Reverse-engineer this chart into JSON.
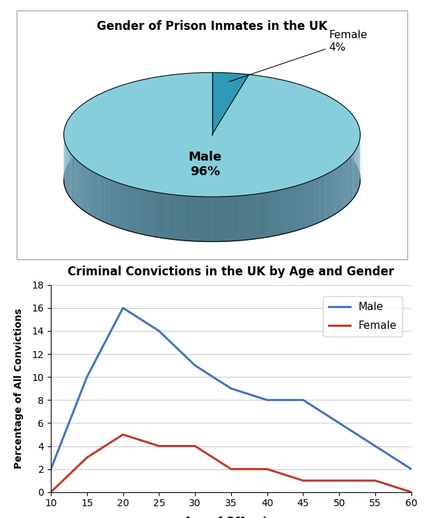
{
  "pie_title": "Gender of Prison Inmates in the UK",
  "pie_labels": [
    "Male",
    "Female"
  ],
  "pie_values": [
    96,
    4
  ],
  "male_face_color": "#87cedc",
  "female_face_color": "#2e9ab5",
  "male_side_color": "#5a9aaa",
  "side_dark_color": "#3a6a7a",
  "male_color": "#4472c4",
  "female_color": "#c0392b",
  "line_title": "Criminal Convictions in the UK by Age and Gender",
  "x_label": "Age of Offender",
  "y_label": "Percentage of All Convictions",
  "ages": [
    10,
    15,
    20,
    25,
    30,
    35,
    40,
    45,
    50,
    55,
    60
  ],
  "male_values": [
    2,
    10,
    16,
    14,
    11,
    9,
    8,
    8,
    6,
    4,
    2
  ],
  "female_values": [
    0,
    3,
    5,
    4,
    4,
    2,
    2,
    1,
    1,
    1,
    0
  ],
  "y_min": 0,
  "y_max": 18,
  "y_ticks": [
    0,
    2,
    4,
    6,
    8,
    10,
    12,
    14,
    16,
    18
  ],
  "x_ticks": [
    10,
    15,
    20,
    25,
    30,
    35,
    40,
    45,
    50,
    55,
    60
  ]
}
